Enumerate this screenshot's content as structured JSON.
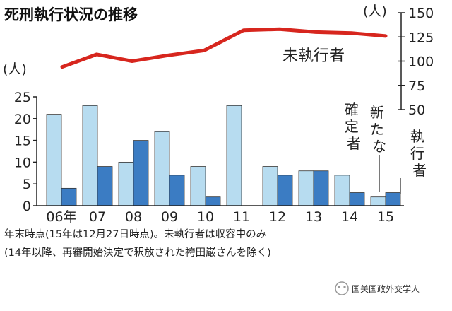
{
  "chart_data": {
    "title": "死刑執行状況の推移",
    "type": "bar+line",
    "categories": [
      "06年",
      "07",
      "08",
      "09",
      "10",
      "11",
      "12",
      "13",
      "14",
      "15"
    ],
    "bar_axis": {
      "unit": "(人)",
      "ticks": [
        0,
        5,
        10,
        15,
        20,
        25
      ],
      "ylim": [
        0,
        25
      ]
    },
    "line_axis": {
      "unit": "(人)",
      "ticks": [
        50,
        75,
        100,
        125,
        150
      ],
      "ylim": [
        50,
        150
      ]
    },
    "series": [
      {
        "name": "新たな確定者",
        "type": "bar",
        "color": "#b7dcf0",
        "values": [
          21,
          23,
          10,
          17,
          9,
          23,
          9,
          8,
          7,
          2
        ]
      },
      {
        "name": "執行者",
        "type": "bar",
        "color": "#3b7cc3",
        "values": [
          4,
          9,
          15,
          7,
          2,
          0,
          7,
          8,
          3,
          3
        ]
      },
      {
        "name": "未執行者",
        "type": "line",
        "color": "#d7261e",
        "values": [
          94,
          107,
          100,
          106,
          111,
          132,
          133,
          130,
          129,
          126
        ]
      }
    ],
    "labels": {
      "new_confirmed": "新たな",
      "confirmed": "確定者",
      "executed": "執行者"
    },
    "notes": [
      "年末時点(15年は12月27日時点)。未執行者は収容中のみ",
      "(14年以降、再審開始決定で釈放された袴田巌さんを除く)"
    ]
  },
  "watermark": "国关国政外交学人",
  "colors": {
    "light_bar": "#b7dcf0",
    "dark_bar": "#3b7cc3",
    "line": "#d7261e"
  }
}
